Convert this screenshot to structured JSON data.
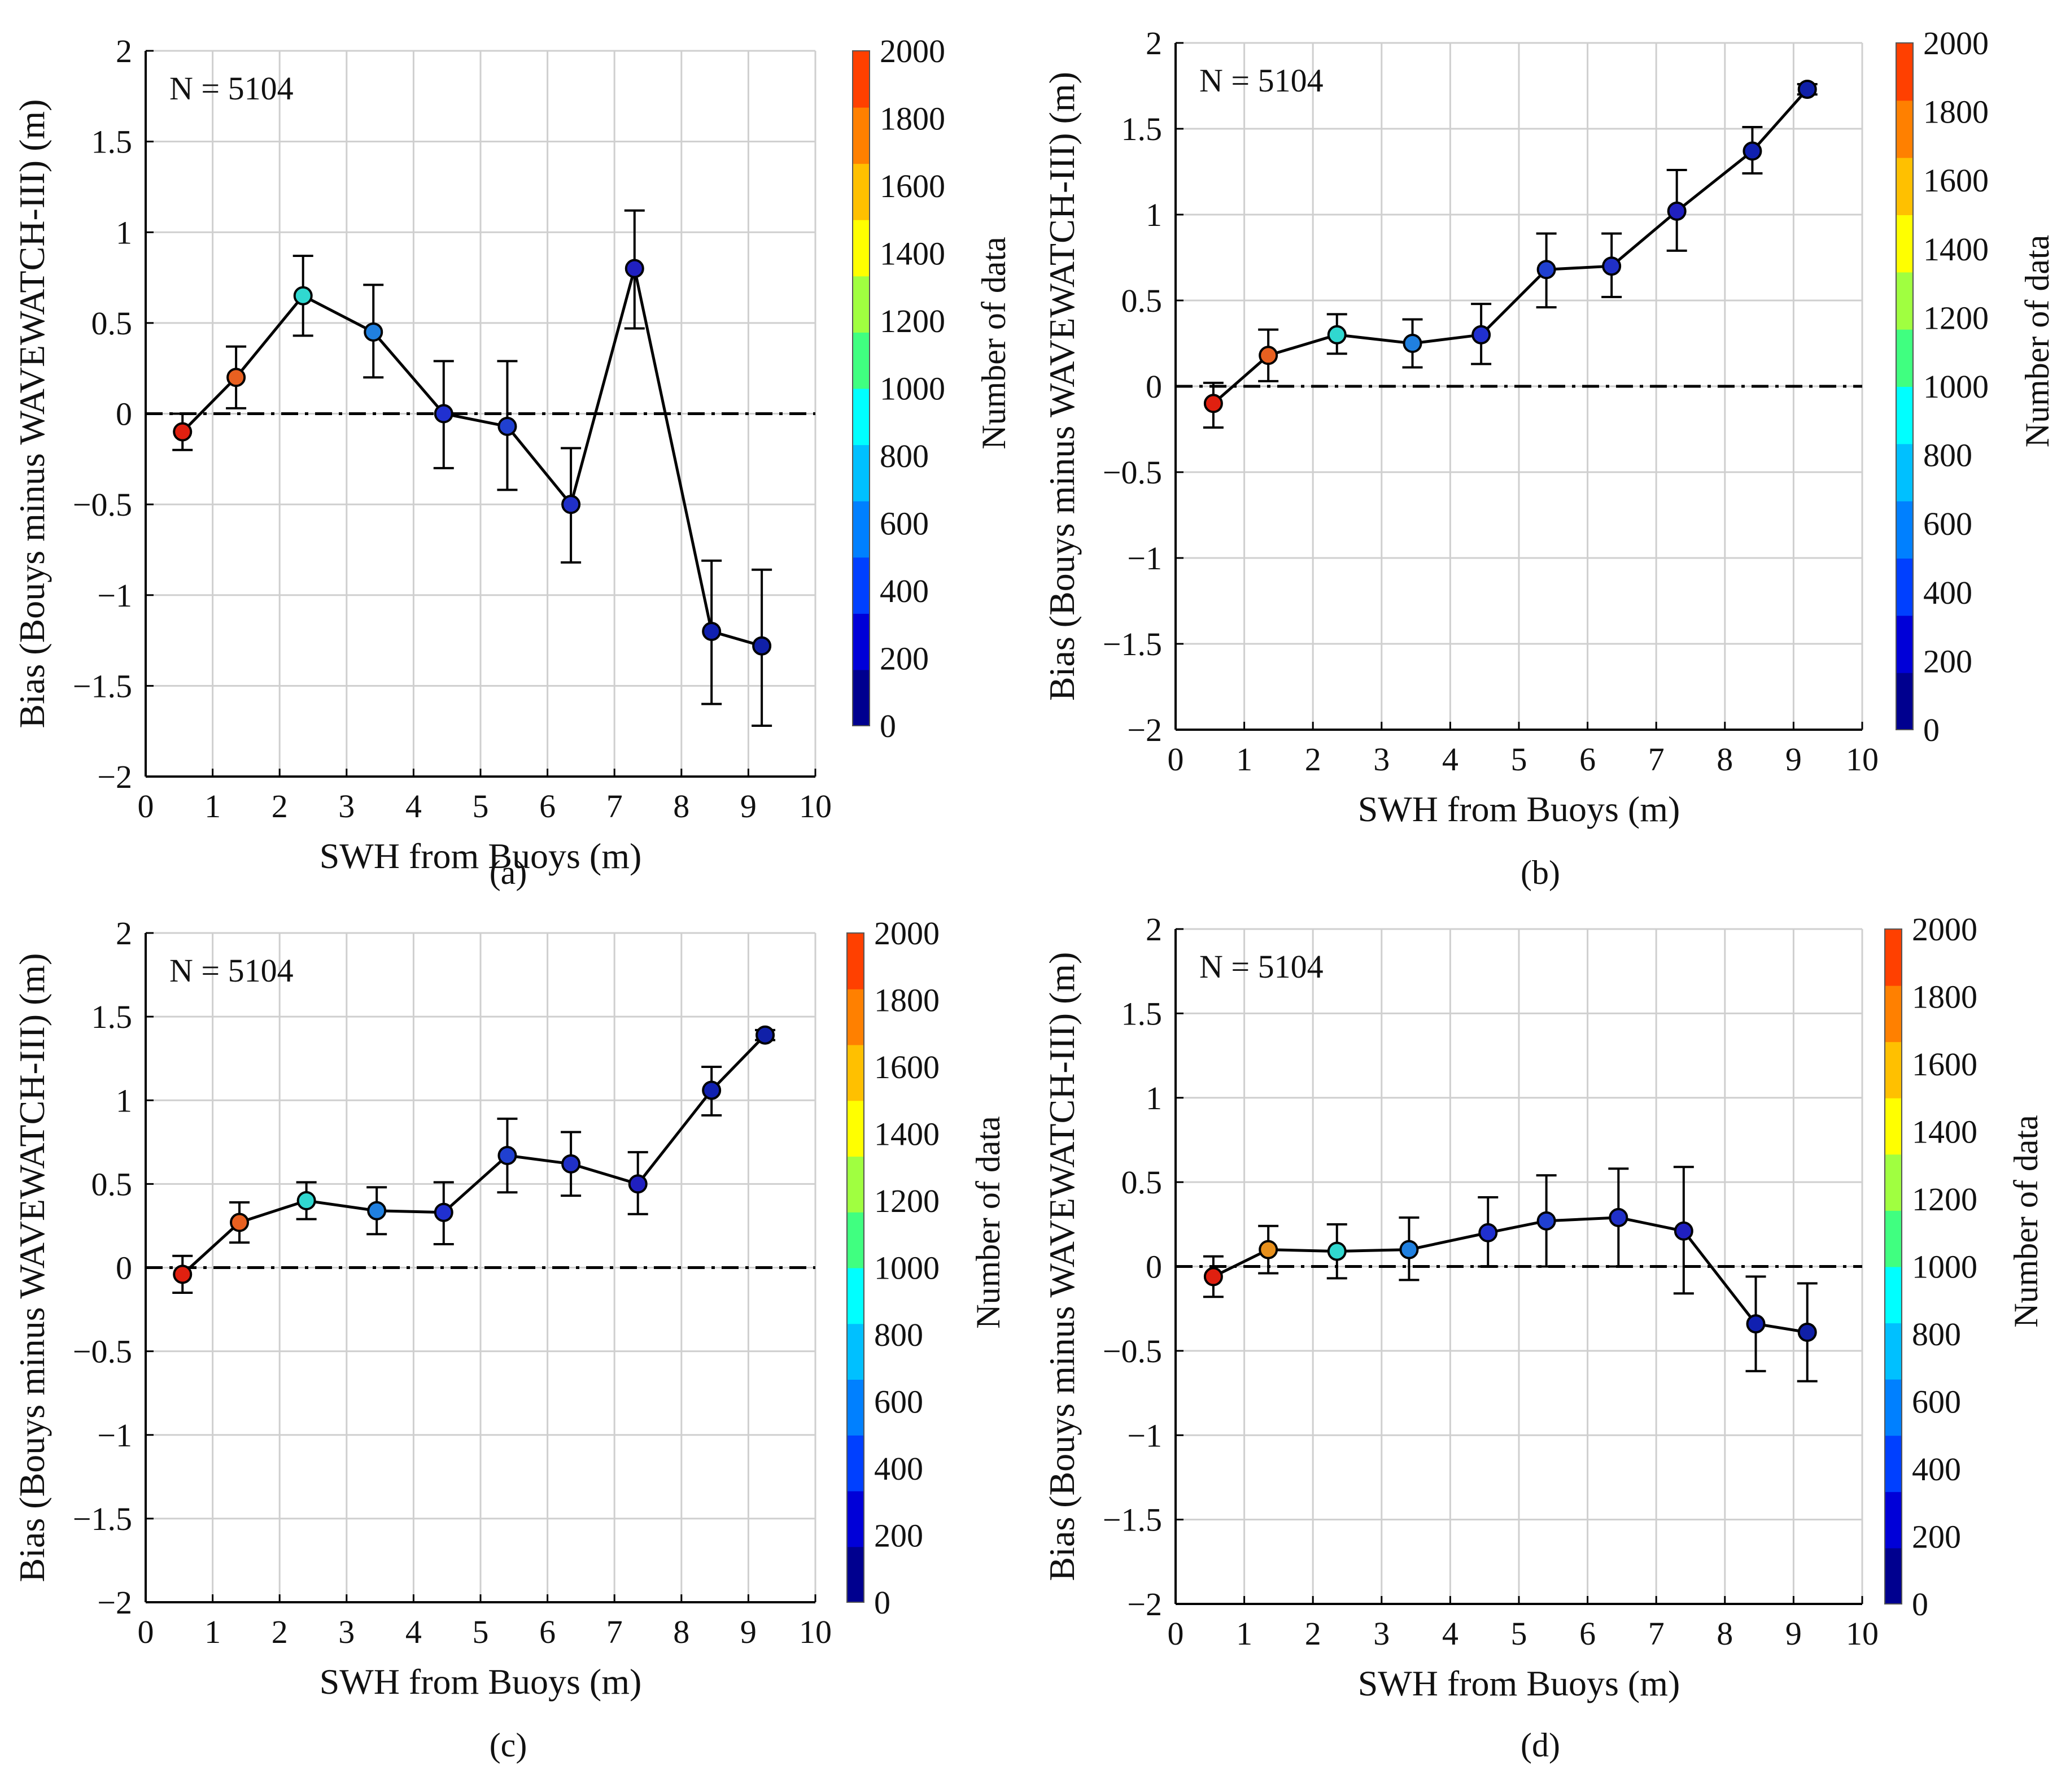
{
  "figure": {
    "shared": {
      "xlabel": "SWH from Buoys (m)",
      "ylabel": "Bias (Bouys minus WAVEWATCH-III) (m)",
      "colorbar_label": "Number of data",
      "annotation": "N = 5104",
      "xlim": [
        0,
        10
      ],
      "ylim": [
        -2,
        2
      ],
      "x_ticks": [
        0,
        1,
        2,
        3,
        4,
        5,
        6,
        7,
        8,
        9,
        10
      ],
      "y_ticks": [
        -2,
        -1.5,
        -1,
        -0.5,
        0,
        0.5,
        1,
        1.5,
        2
      ],
      "colorbar_ticks": [
        0,
        200,
        400,
        600,
        800,
        1000,
        1200,
        1400,
        1600,
        1800,
        2000
      ],
      "colorbar_colors": [
        "#00008f",
        "#0000d8",
        "#0040ff",
        "#0080ff",
        "#00c0ff",
        "#00ffff",
        "#40ff80",
        "#a0ff40",
        "#ffff00",
        "#ffc000",
        "#ff8000",
        "#ff4000"
      ],
      "line_color": "#000000",
      "zero_line_color": "#000000"
    }
  },
  "chart_data": [
    {
      "type": "scatter",
      "panel_label": "(a)",
      "title": "",
      "annotation": "N = 5104",
      "xlabel": "SWH from Buoys (m)",
      "ylabel": "Bias (Bouys minus WAVEWATCH-III) (m)",
      "xlim": [
        0,
        10
      ],
      "ylim": [
        -2,
        2
      ],
      "x": [
        0.55,
        1.35,
        2.35,
        3.4,
        4.45,
        5.4,
        6.35,
        7.3,
        8.45,
        9.2
      ],
      "y": [
        -0.1,
        0.2,
        0.65,
        0.45,
        0.0,
        -0.07,
        -0.5,
        0.8,
        -1.2,
        -1.28
      ],
      "y_low": [
        -0.2,
        0.03,
        0.43,
        0.2,
        -0.3,
        -0.42,
        -0.82,
        0.47,
        -1.6,
        -1.72
      ],
      "y_high": [
        0.0,
        0.37,
        0.87,
        0.71,
        0.29,
        0.29,
        -0.19,
        1.12,
        -0.81,
        -0.86
      ],
      "colors": [
        "#e02010",
        "#e86020",
        "#30d8d0",
        "#2080e0",
        "#2030d0",
        "#2040d0",
        "#2030c8",
        "#2020c0",
        "#1020b0",
        "#1020a8"
      ],
      "colorbar_label": "Number of data"
    },
    {
      "type": "scatter",
      "panel_label": "(b)",
      "title": "",
      "annotation": "N = 5104",
      "xlabel": "SWH from Buoys (m)",
      "ylabel": "Bias (Bouys minus WAVEWATCH-III) (m)",
      "xlim": [
        0,
        10
      ],
      "ylim": [
        -2,
        2
      ],
      "x": [
        0.55,
        1.35,
        2.35,
        3.45,
        4.45,
        5.4,
        6.35,
        7.3,
        8.4,
        9.2
      ],
      "y": [
        -0.1,
        0.18,
        0.3,
        0.25,
        0.3,
        0.68,
        0.7,
        1.02,
        1.37,
        1.73
      ],
      "y_low": [
        -0.24,
        0.03,
        0.19,
        0.11,
        0.13,
        0.46,
        0.52,
        0.79,
        1.24,
        1.7
      ],
      "y_high": [
        0.02,
        0.33,
        0.42,
        0.39,
        0.48,
        0.89,
        0.89,
        1.26,
        1.51,
        1.76
      ],
      "colors": [
        "#e02010",
        "#e86020",
        "#30d8d0",
        "#2080e0",
        "#2030d0",
        "#2040d0",
        "#2030c8",
        "#2020c0",
        "#1020b0",
        "#1020a8"
      ],
      "colorbar_label": "Number of data"
    },
    {
      "type": "scatter",
      "panel_label": "(c)",
      "title": "",
      "annotation": "N = 5104",
      "xlabel": "SWH from Buoys (m)",
      "ylabel": "Bias (Bouys minus WAVEWATCH-III) (m)",
      "xlim": [
        0,
        10
      ],
      "ylim": [
        -2,
        2
      ],
      "x": [
        0.55,
        1.4,
        2.4,
        3.45,
        4.45,
        5.4,
        6.35,
        7.35,
        8.45,
        9.25
      ],
      "y": [
        -0.04,
        0.27,
        0.4,
        0.34,
        0.33,
        0.67,
        0.62,
        0.5,
        1.06,
        1.39
      ],
      "y_low": [
        -0.15,
        0.15,
        0.29,
        0.2,
        0.14,
        0.45,
        0.43,
        0.32,
        0.91,
        1.36
      ],
      "y_high": [
        0.07,
        0.39,
        0.51,
        0.48,
        0.51,
        0.89,
        0.81,
        0.69,
        1.2,
        1.42
      ],
      "colors": [
        "#e02010",
        "#e86020",
        "#30d8d0",
        "#2080e0",
        "#2030d0",
        "#2040d0",
        "#2030c8",
        "#2020c0",
        "#1020b0",
        "#1020a8"
      ],
      "colorbar_label": "Number of data"
    },
    {
      "type": "scatter",
      "panel_label": "(d)",
      "title": "",
      "annotation": "N = 5104",
      "xlabel": "SWH from Buoys (m)",
      "ylabel": "Bias (Bouys minus WAVEWATCH-III) (m)",
      "xlim": [
        0,
        10
      ],
      "ylim": [
        -2,
        2
      ],
      "x": [
        0.55,
        1.35,
        2.35,
        3.4,
        4.55,
        5.4,
        6.45,
        7.4,
        8.45,
        9.2
      ],
      "y": [
        -0.06,
        0.1,
        0.09,
        0.1,
        0.2,
        0.27,
        0.29,
        0.21,
        -0.34,
        -0.39
      ],
      "y_low": [
        -0.18,
        -0.04,
        -0.07,
        -0.08,
        0.0,
        0.0,
        0.0,
        -0.16,
        -0.62,
        -0.68
      ],
      "y_high": [
        0.06,
        0.24,
        0.25,
        0.29,
        0.41,
        0.54,
        0.58,
        0.59,
        -0.06,
        -0.1
      ],
      "colors": [
        "#e02010",
        "#e8901c",
        "#30d8d0",
        "#2080e0",
        "#2030d0",
        "#2040d0",
        "#2030c8",
        "#2020c0",
        "#1020b0",
        "#1020a8"
      ],
      "colorbar_label": "Number of data"
    }
  ]
}
